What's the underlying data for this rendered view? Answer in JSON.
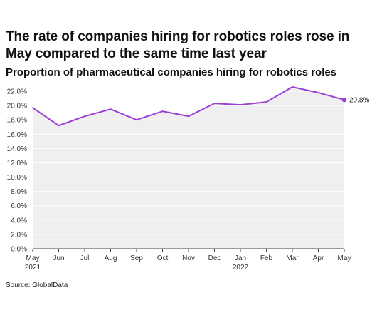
{
  "header": {
    "title": "The rate of companies hiring for robotics roles rose in May compared to the same time last year",
    "subtitle": "Proportion of pharmaceutical companies hiring for robotics roles"
  },
  "footer": {
    "source": "Source: GlobalData"
  },
  "chart_data": {
    "type": "area",
    "categories": [
      "May 2021",
      "Jun",
      "Jul",
      "Aug",
      "Sep",
      "Oct",
      "Nov",
      "Dec",
      "Jan 2022",
      "Feb",
      "Mar",
      "Apr",
      "May"
    ],
    "x_tick_labels": [
      [
        "May",
        "2021"
      ],
      [
        "Jun"
      ],
      [
        "Jul"
      ],
      [
        "Aug"
      ],
      [
        "Sep"
      ],
      [
        "Oct"
      ],
      [
        "Nov"
      ],
      [
        "Dec"
      ],
      [
        "Jan",
        "2022"
      ],
      [
        "Feb"
      ],
      [
        "Mar"
      ],
      [
        "Apr"
      ],
      [
        "May"
      ]
    ],
    "series": [
      {
        "values": [
          19.7,
          17.2,
          18.5,
          19.5,
          18.0,
          19.2,
          18.5,
          20.3,
          20.1,
          20.5,
          22.6,
          21.8,
          20.8
        ]
      }
    ],
    "end_label": "20.8%",
    "ylim": [
      0,
      23
    ],
    "y_ticks": [
      0,
      2,
      4,
      6,
      8,
      10,
      12,
      14,
      16,
      18,
      20,
      22
    ],
    "y_tick_labels": [
      "0.0%",
      "2.0%",
      "4.0%",
      "6.0%",
      "8.0%",
      "10.0%",
      "12.0%",
      "14.0%",
      "16.0%",
      "18.0%",
      "20.0%",
      "22.0%"
    ],
    "xlabel": "",
    "ylabel": "",
    "grid": true,
    "legend": "none",
    "colors": {
      "line": "#9a3fd8",
      "area": "#efefef",
      "grid": "#ffffff",
      "axis": "#444444"
    }
  }
}
